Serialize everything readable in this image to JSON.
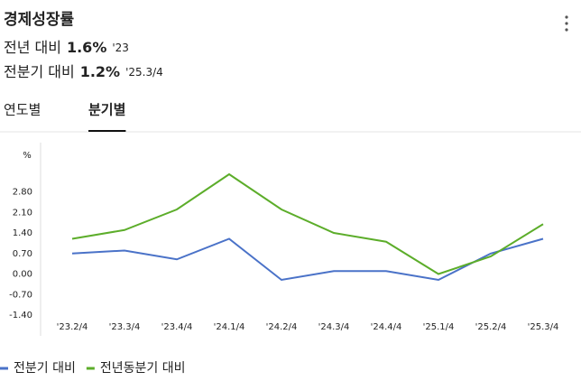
{
  "header": {
    "title": "경제성장률",
    "summary": [
      {
        "label": "전년 대비",
        "value": "1.6%",
        "period": "'23"
      },
      {
        "label": "전분기 대비",
        "value": "1.2%",
        "period": "'25.3/4"
      }
    ],
    "tabs": [
      "연도별",
      "분기별"
    ],
    "active_tab": 1
  },
  "chart_data": {
    "type": "line",
    "y_unit": "%",
    "categories": [
      "'23.2/4",
      "'23.3/4",
      "'23.4/4",
      "'24.1/4",
      "'24.2/4",
      "'24.3/4",
      "'24.4/4",
      "'25.1/4",
      "'25.2/4",
      "'25.3/4"
    ],
    "series": [
      {
        "name": "전분기 대비",
        "color": "#4a72c8",
        "values": [
          0.7,
          0.8,
          0.5,
          1.2,
          -0.2,
          0.1,
          0.1,
          -0.2,
          0.7,
          1.2
        ]
      },
      {
        "name": "전년동분기 대비",
        "color": "#5cad2a",
        "values": [
          1.2,
          1.5,
          2.2,
          3.4,
          2.2,
          1.4,
          1.1,
          0.0,
          0.6,
          1.7
        ]
      }
    ],
    "ylim": [
      -1.4,
      4.2
    ],
    "yticks": [
      {
        "value": -1.4,
        "label": "-1.40"
      },
      {
        "value": -0.7,
        "label": "-0.70"
      },
      {
        "value": 0,
        "label": "0.00"
      },
      {
        "value": 0.7,
        "label": "0.70"
      },
      {
        "value": 1.4,
        "label": "1.40"
      },
      {
        "value": 2.1,
        "label": "2.10"
      },
      {
        "value": 2.8,
        "label": "2.80"
      }
    ],
    "grid": false
  }
}
